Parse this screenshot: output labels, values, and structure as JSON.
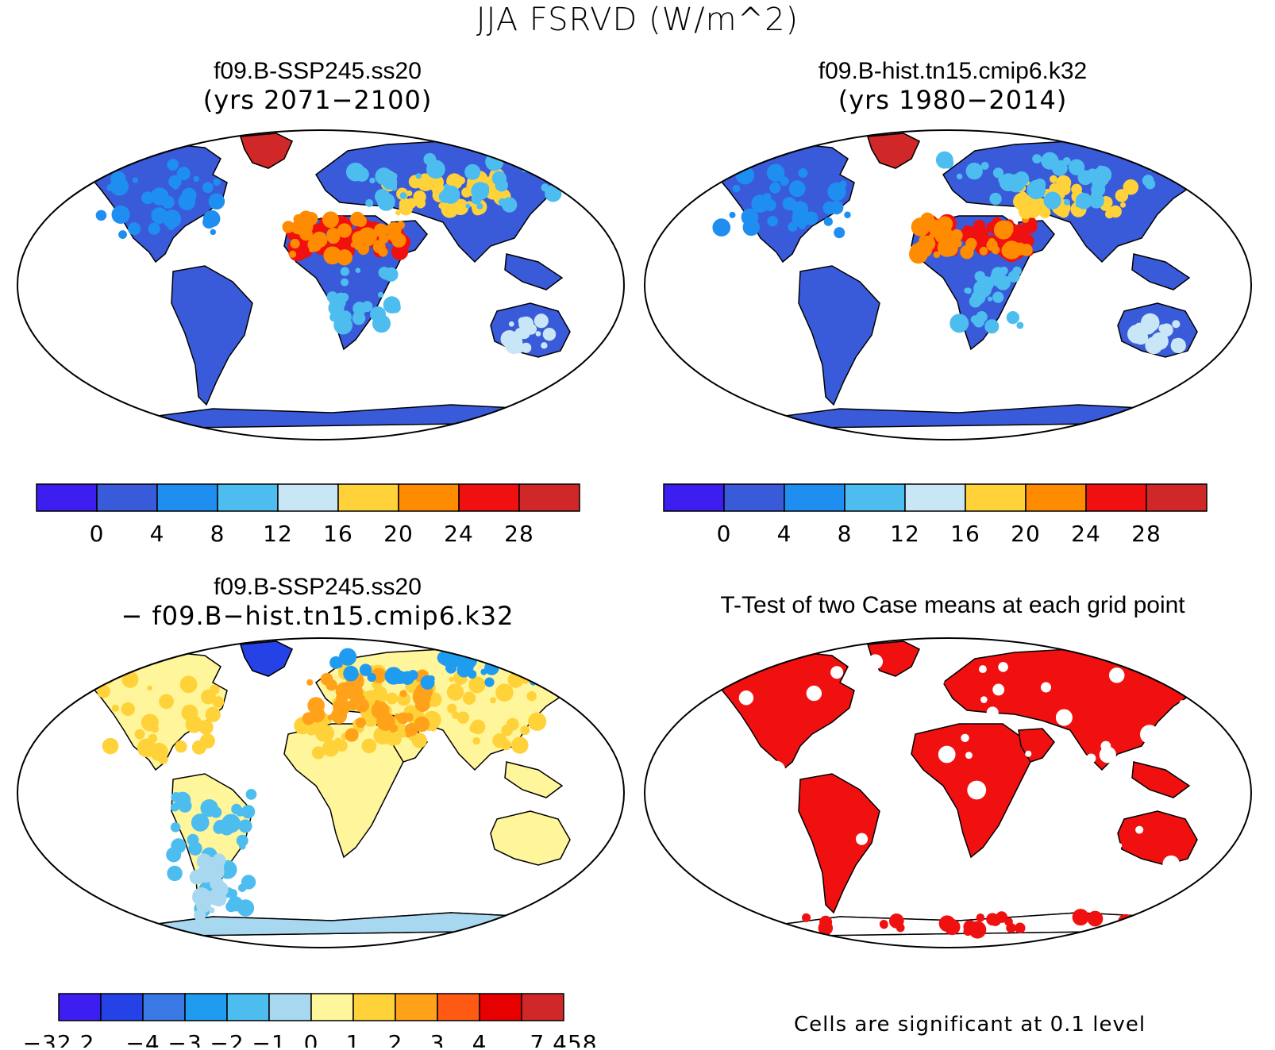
{
  "figure_title": "JJA FSRVD (W/m^2)",
  "panels": {
    "top_left": {
      "title": "f09.B-SSP245.ss20",
      "subtitle": "(yrs 2071−2100)"
    },
    "top_right": {
      "title": "f09.B-hist.tn15.cmip6.k32",
      "subtitle": "(yrs 1980−2014)"
    },
    "bottom_left": {
      "title": "f09.B-SSP245.ss20",
      "subtitle": "− f09.B−hist.tn15.cmip6.k32"
    },
    "bottom_right": {
      "title": "T-Test of two Case means at each grid point"
    }
  },
  "colorbar_abs": {
    "colors": [
      "#3c1ff0",
      "#3a5bd9",
      "#1e8ff0",
      "#4dbdf0",
      "#c8e6f5",
      "#ffd23a",
      "#ff8c00",
      "#f01010",
      "#d02828"
    ],
    "labels": [
      "0",
      "4",
      "8",
      "12",
      "16",
      "20",
      "24",
      "28"
    ]
  },
  "colorbar_diff": {
    "colors": [
      "#3c1ff0",
      "#2442e6",
      "#3a78e6",
      "#1f9cf0",
      "#4dbdf0",
      "#a8d8f0",
      "#fff59a",
      "#ffd23a",
      "#ffa21a",
      "#ff5a14",
      "#e60000",
      "#d02828"
    ],
    "labels": [
      "−32.2",
      "−4",
      "−3",
      "−2",
      "−1",
      "0",
      "1",
      "2",
      "3",
      "4",
      "7.458"
    ]
  },
  "ttest_note": "Cells are significant at 0.1 level",
  "colors": {
    "land_abs": "#3a5bd9",
    "land_diff": "#fff59a",
    "significant": "#f01010"
  }
}
